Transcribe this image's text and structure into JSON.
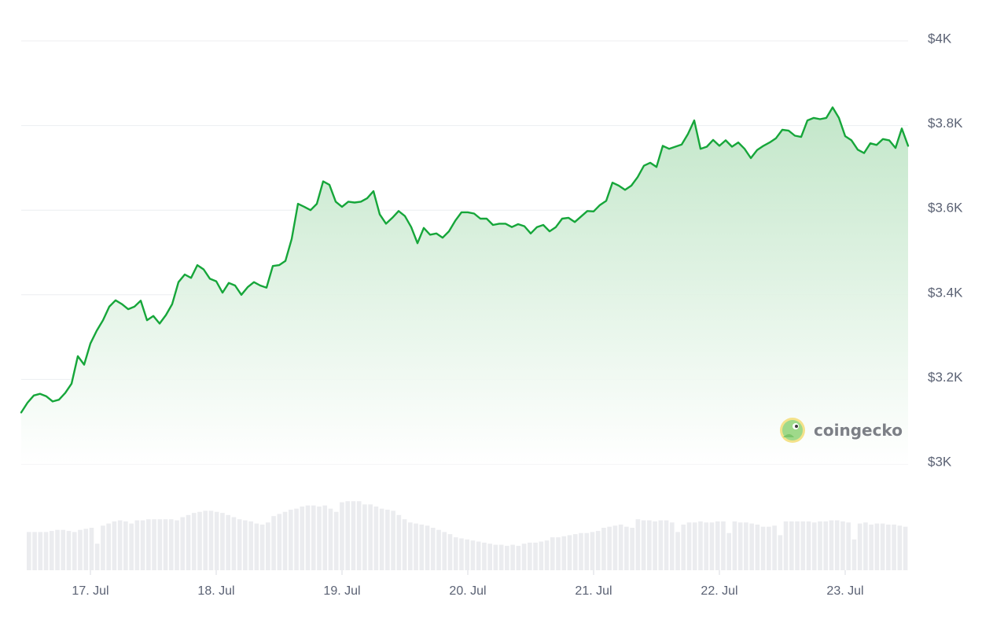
{
  "chart_data": {
    "type": "area",
    "title": "",
    "xlabel": "",
    "ylabel": "",
    "ylim": [
      3000,
      4000
    ],
    "y_ticks": [
      {
        "value": 4000,
        "label": "$4K"
      },
      {
        "value": 3800,
        "label": "$3.8K"
      },
      {
        "value": 3600,
        "label": "$3.6K"
      },
      {
        "value": 3400,
        "label": "$3.4K"
      },
      {
        "value": 3200,
        "label": "$3.2K"
      },
      {
        "value": 3000,
        "label": "$3K"
      }
    ],
    "x_range": [
      16.45,
      23.5
    ],
    "x_ticks": [
      {
        "value": 17,
        "label": "17. Jul"
      },
      {
        "value": 18,
        "label": "18. Jul"
      },
      {
        "value": 19,
        "label": "19. Jul"
      },
      {
        "value": 20,
        "label": "20. Jul"
      },
      {
        "value": 21,
        "label": "21. Jul"
      },
      {
        "value": 22,
        "label": "22. Jul"
      },
      {
        "value": 23,
        "label": "23. Jul"
      }
    ],
    "grid": true,
    "line_color": "#16a63a",
    "fill_color": "#c9ead0",
    "volume_color": "#ebecef",
    "price_series": {
      "name": "",
      "points": [
        [
          16.45,
          3122
        ],
        [
          16.5,
          3145
        ],
        [
          16.55,
          3162
        ],
        [
          16.6,
          3166
        ],
        [
          16.65,
          3160
        ],
        [
          16.7,
          3148
        ],
        [
          16.75,
          3152
        ],
        [
          16.8,
          3168
        ],
        [
          16.85,
          3190
        ],
        [
          16.9,
          3255
        ],
        [
          16.95,
          3235
        ],
        [
          17.0,
          3285
        ],
        [
          17.05,
          3315
        ],
        [
          17.1,
          3340
        ],
        [
          17.15,
          3372
        ],
        [
          17.2,
          3387
        ],
        [
          17.25,
          3378
        ],
        [
          17.3,
          3366
        ],
        [
          17.35,
          3372
        ],
        [
          17.4,
          3386
        ],
        [
          17.45,
          3340
        ],
        [
          17.5,
          3350
        ],
        [
          17.55,
          3332
        ],
        [
          17.6,
          3352
        ],
        [
          17.65,
          3378
        ],
        [
          17.7,
          3430
        ],
        [
          17.75,
          3448
        ],
        [
          17.8,
          3440
        ],
        [
          17.85,
          3470
        ],
        [
          17.9,
          3460
        ],
        [
          17.95,
          3438
        ],
        [
          18.0,
          3432
        ],
        [
          18.05,
          3405
        ],
        [
          18.1,
          3428
        ],
        [
          18.15,
          3422
        ],
        [
          18.2,
          3400
        ],
        [
          18.25,
          3418
        ],
        [
          18.3,
          3430
        ],
        [
          18.35,
          3422
        ],
        [
          18.4,
          3417
        ],
        [
          18.45,
          3468
        ],
        [
          18.5,
          3470
        ],
        [
          18.55,
          3480
        ],
        [
          18.6,
          3532
        ],
        [
          18.65,
          3615
        ],
        [
          18.7,
          3608
        ],
        [
          18.75,
          3600
        ],
        [
          18.8,
          3615
        ],
        [
          18.85,
          3668
        ],
        [
          18.9,
          3660
        ],
        [
          18.95,
          3620
        ],
        [
          19.0,
          3608
        ],
        [
          19.05,
          3620
        ],
        [
          19.1,
          3618
        ],
        [
          19.15,
          3620
        ],
        [
          19.2,
          3628
        ],
        [
          19.25,
          3645
        ],
        [
          19.3,
          3590
        ],
        [
          19.35,
          3568
        ],
        [
          19.4,
          3582
        ],
        [
          19.45,
          3598
        ],
        [
          19.5,
          3586
        ],
        [
          19.55,
          3560
        ],
        [
          19.6,
          3522
        ],
        [
          19.65,
          3558
        ],
        [
          19.7,
          3542
        ],
        [
          19.75,
          3545
        ],
        [
          19.8,
          3535
        ],
        [
          19.85,
          3550
        ],
        [
          19.9,
          3575
        ],
        [
          19.95,
          3595
        ],
        [
          20.0,
          3595
        ],
        [
          20.05,
          3592
        ],
        [
          20.1,
          3580
        ],
        [
          20.15,
          3580
        ],
        [
          20.2,
          3565
        ],
        [
          20.25,
          3568
        ],
        [
          20.3,
          3568
        ],
        [
          20.35,
          3560
        ],
        [
          20.4,
          3567
        ],
        [
          20.45,
          3562
        ],
        [
          20.5,
          3545
        ],
        [
          20.55,
          3560
        ],
        [
          20.6,
          3565
        ],
        [
          20.65,
          3550
        ],
        [
          20.7,
          3560
        ],
        [
          20.75,
          3580
        ],
        [
          20.8,
          3582
        ],
        [
          20.85,
          3572
        ],
        [
          20.9,
          3585
        ],
        [
          20.95,
          3598
        ],
        [
          21.0,
          3597
        ],
        [
          21.05,
          3612
        ],
        [
          21.1,
          3622
        ],
        [
          21.15,
          3665
        ],
        [
          21.2,
          3658
        ],
        [
          21.25,
          3648
        ],
        [
          21.3,
          3658
        ],
        [
          21.35,
          3678
        ],
        [
          21.4,
          3705
        ],
        [
          21.45,
          3712
        ],
        [
          21.5,
          3702
        ],
        [
          21.55,
          3752
        ],
        [
          21.6,
          3745
        ],
        [
          21.65,
          3750
        ],
        [
          21.7,
          3755
        ],
        [
          21.75,
          3780
        ],
        [
          21.8,
          3812
        ],
        [
          21.85,
          3745
        ],
        [
          21.9,
          3750
        ],
        [
          21.95,
          3766
        ],
        [
          22.0,
          3752
        ],
        [
          22.05,
          3765
        ],
        [
          22.1,
          3750
        ],
        [
          22.15,
          3760
        ],
        [
          22.2,
          3745
        ],
        [
          22.25,
          3723
        ],
        [
          22.3,
          3742
        ],
        [
          22.35,
          3752
        ],
        [
          22.4,
          3760
        ],
        [
          22.45,
          3770
        ],
        [
          22.5,
          3790
        ],
        [
          22.55,
          3788
        ],
        [
          22.6,
          3776
        ],
        [
          22.65,
          3773
        ],
        [
          22.7,
          3812
        ],
        [
          22.75,
          3818
        ],
        [
          22.8,
          3815
        ],
        [
          22.85,
          3818
        ],
        [
          22.9,
          3843
        ],
        [
          22.95,
          3818
        ],
        [
          23.0,
          3775
        ],
        [
          23.05,
          3765
        ],
        [
          23.1,
          3743
        ],
        [
          23.15,
          3735
        ],
        [
          23.2,
          3758
        ],
        [
          23.25,
          3754
        ],
        [
          23.3,
          3768
        ],
        [
          23.35,
          3765
        ],
        [
          23.4,
          3747
        ],
        [
          23.45,
          3793
        ],
        [
          23.5,
          3752
        ]
      ]
    },
    "volume_series": {
      "name": "",
      "values": [
        0.36,
        0.36,
        0.36,
        0.36,
        0.37,
        0.38,
        0.38,
        0.37,
        0.36,
        0.38,
        0.39,
        0.4,
        0.25,
        0.42,
        0.44,
        0.46,
        0.47,
        0.46,
        0.44,
        0.47,
        0.47,
        0.48,
        0.48,
        0.48,
        0.48,
        0.48,
        0.47,
        0.5,
        0.52,
        0.54,
        0.55,
        0.56,
        0.56,
        0.55,
        0.54,
        0.52,
        0.5,
        0.48,
        0.47,
        0.46,
        0.44,
        0.43,
        0.45,
        0.51,
        0.53,
        0.55,
        0.57,
        0.58,
        0.6,
        0.61,
        0.61,
        0.6,
        0.61,
        0.58,
        0.55,
        0.64,
        0.65,
        0.65,
        0.65,
        0.62,
        0.62,
        0.6,
        0.58,
        0.57,
        0.56,
        0.52,
        0.48,
        0.45,
        0.44,
        0.43,
        0.42,
        0.4,
        0.38,
        0.36,
        0.34,
        0.31,
        0.3,
        0.29,
        0.28,
        0.27,
        0.26,
        0.25,
        0.24,
        0.24,
        0.23,
        0.24,
        0.23,
        0.25,
        0.26,
        0.26,
        0.27,
        0.28,
        0.31,
        0.31,
        0.32,
        0.33,
        0.34,
        0.35,
        0.35,
        0.36,
        0.37,
        0.4,
        0.41,
        0.42,
        0.43,
        0.41,
        0.4,
        0.48,
        0.47,
        0.47,
        0.46,
        0.47,
        0.47,
        0.45,
        0.36,
        0.43,
        0.45,
        0.45,
        0.46,
        0.45,
        0.45,
        0.46,
        0.46,
        0.35,
        0.46,
        0.45,
        0.45,
        0.44,
        0.43,
        0.41,
        0.41,
        0.42,
        0.33,
        0.46,
        0.46,
        0.46,
        0.46,
        0.46,
        0.45,
        0.46,
        0.46,
        0.47,
        0.47,
        0.46,
        0.45,
        0.29,
        0.44,
        0.45,
        0.43,
        0.44,
        0.44,
        0.43,
        0.43,
        0.42,
        0.41
      ]
    }
  },
  "watermark": {
    "text": "coingecko"
  }
}
